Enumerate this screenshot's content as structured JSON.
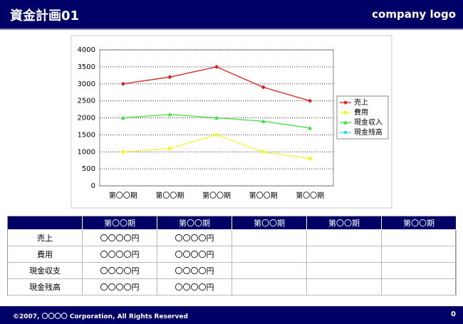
{
  "header": {
    "title": "資金計画01",
    "logo": "company logo"
  },
  "chart_data": {
    "type": "line",
    "categories": [
      "第〇〇期",
      "第〇〇期",
      "第〇〇期",
      "第〇〇期",
      "第〇〇期"
    ],
    "series": [
      {
        "name": "売上",
        "color": "#d42020",
        "values": [
          3000,
          3200,
          3500,
          2900,
          2500
        ]
      },
      {
        "name": "費用",
        "color": "#f5f53c",
        "values": [
          1000,
          1100,
          1500,
          1000,
          800
        ]
      },
      {
        "name": "現金収入",
        "color": "#40e040",
        "values": [
          2000,
          2100,
          2000,
          1900,
          1700
        ]
      },
      {
        "name": "現金残高",
        "color": "#30e0f0",
        "values": [
          null,
          null,
          null,
          null,
          null
        ]
      }
    ],
    "ylim": [
      0,
      4000
    ],
    "yticks": [
      0,
      500,
      1000,
      1500,
      2000,
      2500,
      3000,
      3500,
      4000
    ],
    "grid": true,
    "legend": "right"
  },
  "table": {
    "columns": [
      "第〇〇期",
      "第〇〇期",
      "第〇〇期",
      "第〇〇期",
      "第〇〇期"
    ],
    "rows": [
      {
        "label": "売上",
        "cells": [
          "〇〇〇〇円",
          "〇〇〇〇円"
        ]
      },
      {
        "label": "費用",
        "cells": [
          "〇〇〇〇円",
          "〇〇〇〇円"
        ]
      },
      {
        "label": "現金収支",
        "cells": [
          "〇〇〇〇円",
          "〇〇〇〇円"
        ]
      },
      {
        "label": "現金残高",
        "cells": [
          "〇〇〇〇円",
          "〇〇〇〇円"
        ]
      }
    ]
  },
  "footer": {
    "copyright": "©2007, 〇〇〇〇 Corporation, All Rights Reserved",
    "page": "0"
  }
}
